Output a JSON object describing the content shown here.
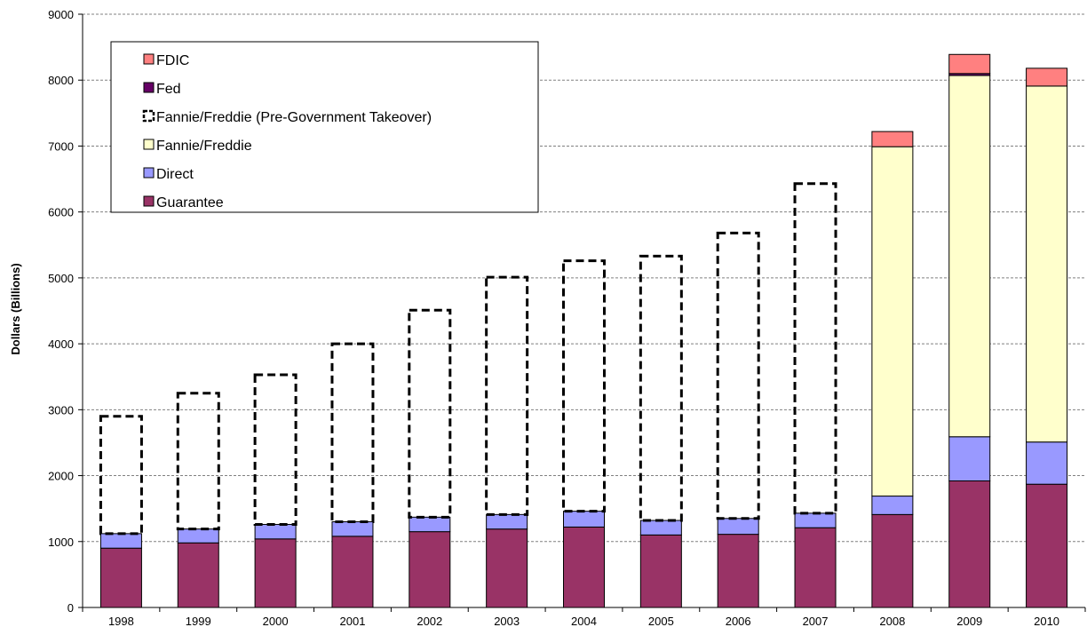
{
  "chart_data": {
    "type": "bar",
    "stacked": true,
    "title": "",
    "xlabel": "",
    "ylabel": "Dollars (Billions)",
    "ylim": [
      0,
      9000
    ],
    "yticks": [
      0,
      1000,
      2000,
      3000,
      4000,
      5000,
      6000,
      7000,
      8000,
      9000
    ],
    "grid": "horizontal dashed",
    "legend_position": "top-left",
    "categories": [
      "1998",
      "1999",
      "2000",
      "2001",
      "2002",
      "2003",
      "2004",
      "2005",
      "2006",
      "2007",
      "2008",
      "2009",
      "2010"
    ],
    "series": [
      {
        "name": "Guarantee",
        "color": "#993366",
        "style": "solid",
        "values": [
          900,
          980,
          1040,
          1080,
          1150,
          1190,
          1220,
          1100,
          1110,
          1210,
          1410,
          1920,
          1870
        ]
      },
      {
        "name": "Direct",
        "color": "#9999ff",
        "style": "solid",
        "values": [
          220,
          210,
          220,
          220,
          220,
          220,
          240,
          220,
          240,
          220,
          280,
          670,
          640
        ]
      },
      {
        "name": "Fannie/Freddie",
        "color": "#ffffcc",
        "style": "solid",
        "values": [
          0,
          0,
          0,
          0,
          0,
          0,
          0,
          0,
          0,
          0,
          5300,
          5480,
          5400
        ]
      },
      {
        "name": "Fannie/Freddie (Pre-Government Takeover)",
        "color": "#ffffff",
        "style": "dashed",
        "values": [
          1780,
          2060,
          2270,
          2700,
          3140,
          3600,
          3800,
          4010,
          4330,
          5000,
          0,
          0,
          0
        ]
      },
      {
        "name": "Fed",
        "color": "#660066",
        "style": "solid",
        "values": [
          0,
          0,
          0,
          0,
          0,
          0,
          0,
          0,
          0,
          0,
          0,
          30,
          0
        ]
      },
      {
        "name": "FDIC",
        "color": "#ff8080",
        "style": "solid",
        "values": [
          0,
          0,
          0,
          0,
          0,
          0,
          0,
          0,
          0,
          0,
          230,
          290,
          270
        ]
      }
    ],
    "legend_order": [
      "FDIC",
      "Fed",
      "Fannie/Freddie (Pre-Government Takeover)",
      "Fannie/Freddie",
      "Direct",
      "Guarantee"
    ]
  }
}
